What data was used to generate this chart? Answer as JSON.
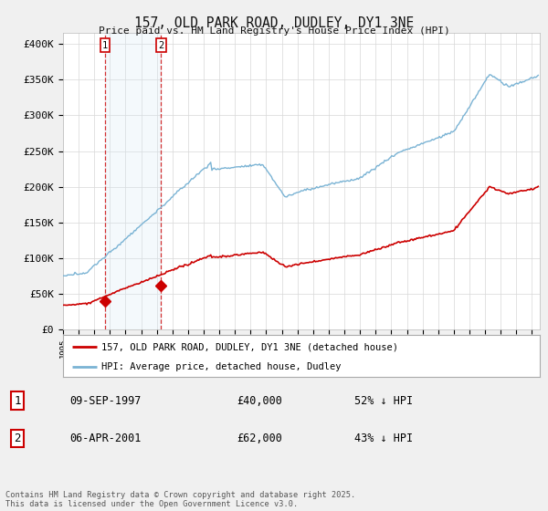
{
  "title": "157, OLD PARK ROAD, DUDLEY, DY1 3NE",
  "subtitle": "Price paid vs. HM Land Registry's House Price Index (HPI)",
  "ylabel_ticks": [
    "£0",
    "£50K",
    "£100K",
    "£150K",
    "£200K",
    "£250K",
    "£300K",
    "£350K",
    "£400K"
  ],
  "ytick_values": [
    0,
    50000,
    100000,
    150000,
    200000,
    250000,
    300000,
    350000,
    400000
  ],
  "ylim": [
    0,
    415000
  ],
  "xlim_start": 1995.0,
  "xlim_end": 2025.5,
  "hpi_color": "#7ab3d4",
  "price_color": "#cc0000",
  "span_color": "#d6e8f5",
  "sale1_date": 1997.69,
  "sale1_price": 40000,
  "sale2_date": 2001.27,
  "sale2_price": 62000,
  "legend_label_price": "157, OLD PARK ROAD, DUDLEY, DY1 3NE (detached house)",
  "legend_label_hpi": "HPI: Average price, detached house, Dudley",
  "table_row1": [
    "1",
    "09-SEP-1997",
    "£40,000",
    "52% ↓ HPI"
  ],
  "table_row2": [
    "2",
    "06-APR-2001",
    "£62,000",
    "43% ↓ HPI"
  ],
  "footer": "Contains HM Land Registry data © Crown copyright and database right 2025.\nThis data is licensed under the Open Government Licence v3.0.",
  "background_color": "#f0f0f0",
  "plot_bg_color": "#ffffff"
}
